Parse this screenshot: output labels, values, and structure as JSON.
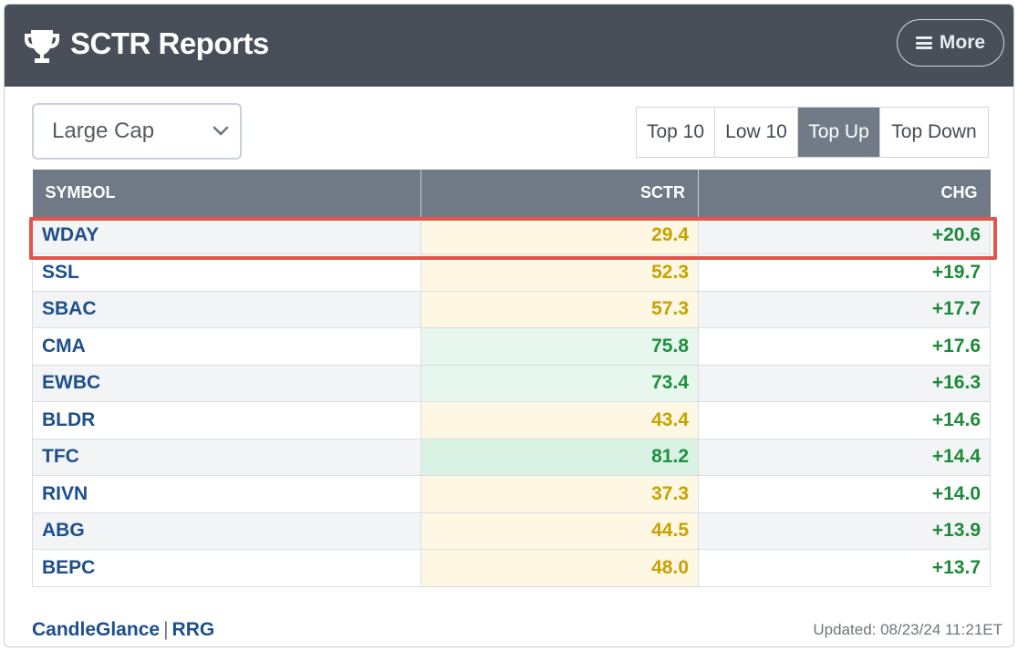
{
  "header": {
    "title": "SCTR Reports",
    "more_label": "More"
  },
  "filter": {
    "selected": "Large Cap"
  },
  "tabs": [
    {
      "label": "Top 10",
      "active": false
    },
    {
      "label": "Low 10",
      "active": false
    },
    {
      "label": "Top Up",
      "active": true
    },
    {
      "label": "Top Down",
      "active": false
    }
  ],
  "table": {
    "columns": [
      "SYMBOL",
      "SCTR",
      "CHG"
    ],
    "rows": [
      {
        "symbol": "WDAY",
        "sctr": "29.4",
        "chg": "+20.6",
        "tone": "yellow",
        "highlighted": true
      },
      {
        "symbol": "SSL",
        "sctr": "52.3",
        "chg": "+19.7",
        "tone": "yellow"
      },
      {
        "symbol": "SBAC",
        "sctr": "57.3",
        "chg": "+17.7",
        "tone": "yellow"
      },
      {
        "symbol": "CMA",
        "sctr": "75.8",
        "chg": "+17.6",
        "tone": "green"
      },
      {
        "symbol": "EWBC",
        "sctr": "73.4",
        "chg": "+16.3",
        "tone": "green"
      },
      {
        "symbol": "BLDR",
        "sctr": "43.4",
        "chg": "+14.6",
        "tone": "yellow"
      },
      {
        "symbol": "TFC",
        "sctr": "81.2",
        "chg": "+14.4",
        "tone": "green-strong"
      },
      {
        "symbol": "RIVN",
        "sctr": "37.3",
        "chg": "+14.0",
        "tone": "yellow"
      },
      {
        "symbol": "ABG",
        "sctr": "44.5",
        "chg": "+13.9",
        "tone": "yellow"
      },
      {
        "symbol": "BEPC",
        "sctr": "48.0",
        "chg": "+13.7",
        "tone": "yellow"
      }
    ]
  },
  "footer": {
    "link1": "CandleGlance",
    "separator": "|",
    "link2": "RRG",
    "updated": "Updated: 08/23/24 11:21ET"
  },
  "icons": {
    "title_icon": "trophy-icon",
    "more_icon": "hamburger-menu-icon",
    "select_icon": "chevron-down-icon"
  },
  "colors": {
    "header_bg": "#484f59",
    "table_header_bg": "#6f7a86",
    "active_tab_bg": "#707b87",
    "link": "#1d4f8c",
    "positive": "#1e8a3a",
    "sctr_yellow": "#c8a200",
    "sctr_green": "#1e9140",
    "highlight": "#e5544b"
  }
}
